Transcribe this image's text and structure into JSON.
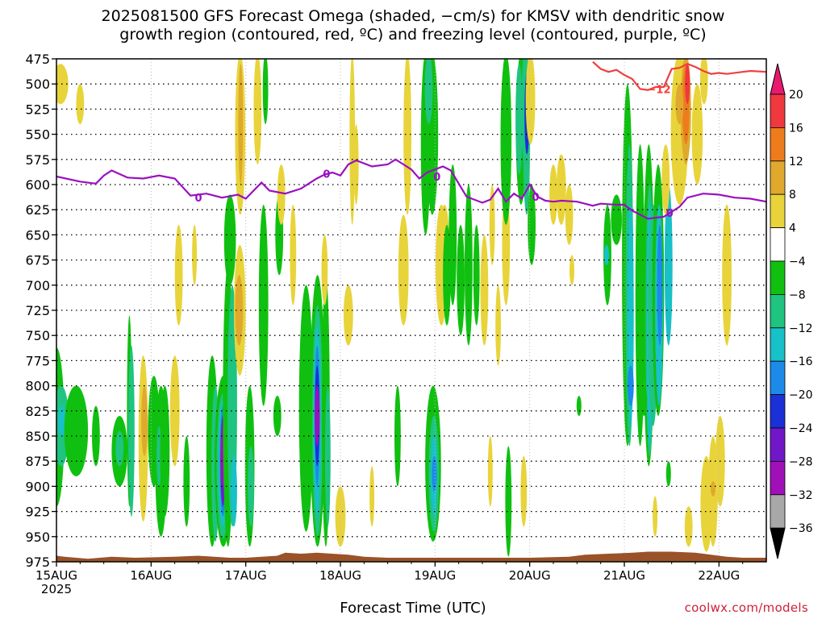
{
  "title_line1": "2025081500 GFS Forecast Omega (shaded, −cm/s) for KMSV with dendritic snow",
  "title_line2": "growth region (contoured, red, ºC) and freezing level (contoured, purple, ºC)",
  "xlabel": "Forecast Time (UTC)",
  "credit": "coolwx.com/models",
  "chart_data": {
    "type": "heatmap",
    "x_ticks": [
      "15AUG",
      "16AUG",
      "17AUG",
      "18AUG",
      "19AUG",
      "20AUG",
      "21AUG",
      "22AUG"
    ],
    "x_tick_year": "2025",
    "x_range_hours": [
      0,
      180
    ],
    "y_ticks": [
      475,
      500,
      525,
      550,
      575,
      600,
      625,
      650,
      675,
      700,
      725,
      750,
      775,
      800,
      825,
      850,
      875,
      900,
      925,
      950,
      975
    ],
    "y_range_hpa": [
      475,
      975
    ],
    "grid": true,
    "colorbar": {
      "labels": [
        "20",
        "16",
        "12",
        "8",
        "4",
        "−4",
        "−8",
        "−12",
        "−16",
        "−20",
        "−24",
        "−28",
        "−32",
        "−36"
      ],
      "colors": [
        "#e8196e",
        "#f0383f",
        "#ee7c1c",
        "#e0a92e",
        "#e8d43a",
        "#ffffff",
        "#10c010",
        "#1ec480",
        "#18c0c8",
        "#1c8ae8",
        "#1c30d8",
        "#7018c8",
        "#a010b8",
        "#a8a8a8",
        "#000000"
      ]
    },
    "freezing_level": {
      "color": "#9a10c0",
      "label": "0",
      "points": [
        [
          0,
          592
        ],
        [
          6,
          597
        ],
        [
          10,
          599
        ],
        [
          12,
          591
        ],
        [
          14,
          586
        ],
        [
          18,
          593
        ],
        [
          22,
          594
        ],
        [
          26,
          591
        ],
        [
          30,
          594
        ],
        [
          34,
          611
        ],
        [
          38,
          609
        ],
        [
          42,
          613
        ],
        [
          46,
          610
        ],
        [
          48,
          614
        ],
        [
          50,
          606
        ],
        [
          52,
          598
        ],
        [
          54,
          606
        ],
        [
          58,
          609
        ],
        [
          62,
          604
        ],
        [
          66,
          594
        ],
        [
          68,
          590
        ],
        [
          70,
          588
        ],
        [
          72,
          591
        ],
        [
          74,
          580
        ],
        [
          76,
          576
        ],
        [
          80,
          582
        ],
        [
          84,
          580
        ],
        [
          86,
          575
        ],
        [
          88,
          580
        ],
        [
          90,
          585
        ],
        [
          92,
          594
        ],
        [
          94,
          588
        ],
        [
          98,
          582
        ],
        [
          100,
          586
        ],
        [
          102,
          599
        ],
        [
          104,
          612
        ],
        [
          108,
          618
        ],
        [
          110,
          615
        ],
        [
          112,
          604
        ],
        [
          114,
          617
        ],
        [
          116,
          609
        ],
        [
          118,
          614
        ],
        [
          120,
          600
        ],
        [
          122,
          612
        ],
        [
          124,
          616
        ],
        [
          126,
          617
        ],
        [
          128,
          616
        ],
        [
          132,
          617
        ],
        [
          136,
          621
        ],
        [
          138,
          619
        ],
        [
          142,
          620
        ],
        [
          144,
          620
        ],
        [
          146,
          626
        ],
        [
          148,
          630
        ],
        [
          150,
          634
        ],
        [
          154,
          632
        ],
        [
          158,
          622
        ],
        [
          160,
          613
        ],
        [
          164,
          609
        ],
        [
          168,
          610
        ],
        [
          172,
          613
        ],
        [
          176,
          614
        ],
        [
          180,
          617
        ]
      ]
    },
    "dgz_minus12": {
      "color": "#ee4040",
      "label": "−12",
      "points": [
        [
          136,
          478
        ],
        [
          138,
          485
        ],
        [
          140,
          488
        ],
        [
          142,
          486
        ],
        [
          144,
          491
        ],
        [
          146,
          495
        ],
        [
          148,
          505
        ],
        [
          150,
          506
        ],
        [
          152,
          503
        ],
        [
          154,
          503
        ],
        [
          156,
          485
        ],
        [
          158,
          484
        ],
        [
          160,
          480
        ],
        [
          162,
          483
        ],
        [
          164,
          487
        ],
        [
          166,
          490
        ],
        [
          168,
          489
        ],
        [
          170,
          490
        ],
        [
          174,
          488
        ],
        [
          176,
          487
        ],
        [
          180,
          488
        ]
      ]
    },
    "terrain_surface": {
      "color": "#9a5228",
      "points": [
        [
          0,
          969
        ],
        [
          2,
          970
        ],
        [
          8,
          972
        ],
        [
          14,
          970
        ],
        [
          20,
          971
        ],
        [
          30,
          970
        ],
        [
          36,
          969
        ],
        [
          40,
          970
        ],
        [
          44,
          971
        ],
        [
          48,
          971
        ],
        [
          56,
          969
        ],
        [
          58,
          966
        ],
        [
          62,
          967
        ],
        [
          66,
          966
        ],
        [
          70,
          967
        ],
        [
          74,
          968
        ],
        [
          78,
          970
        ],
        [
          84,
          971
        ],
        [
          100,
          971
        ],
        [
          120,
          971
        ],
        [
          130,
          970
        ],
        [
          134,
          968
        ],
        [
          140,
          967
        ],
        [
          146,
          966
        ],
        [
          150,
          965
        ],
        [
          156,
          965
        ],
        [
          162,
          966
        ],
        [
          166,
          968
        ],
        [
          170,
          970
        ],
        [
          174,
          971
        ],
        [
          180,
          971
        ]
      ]
    }
  }
}
